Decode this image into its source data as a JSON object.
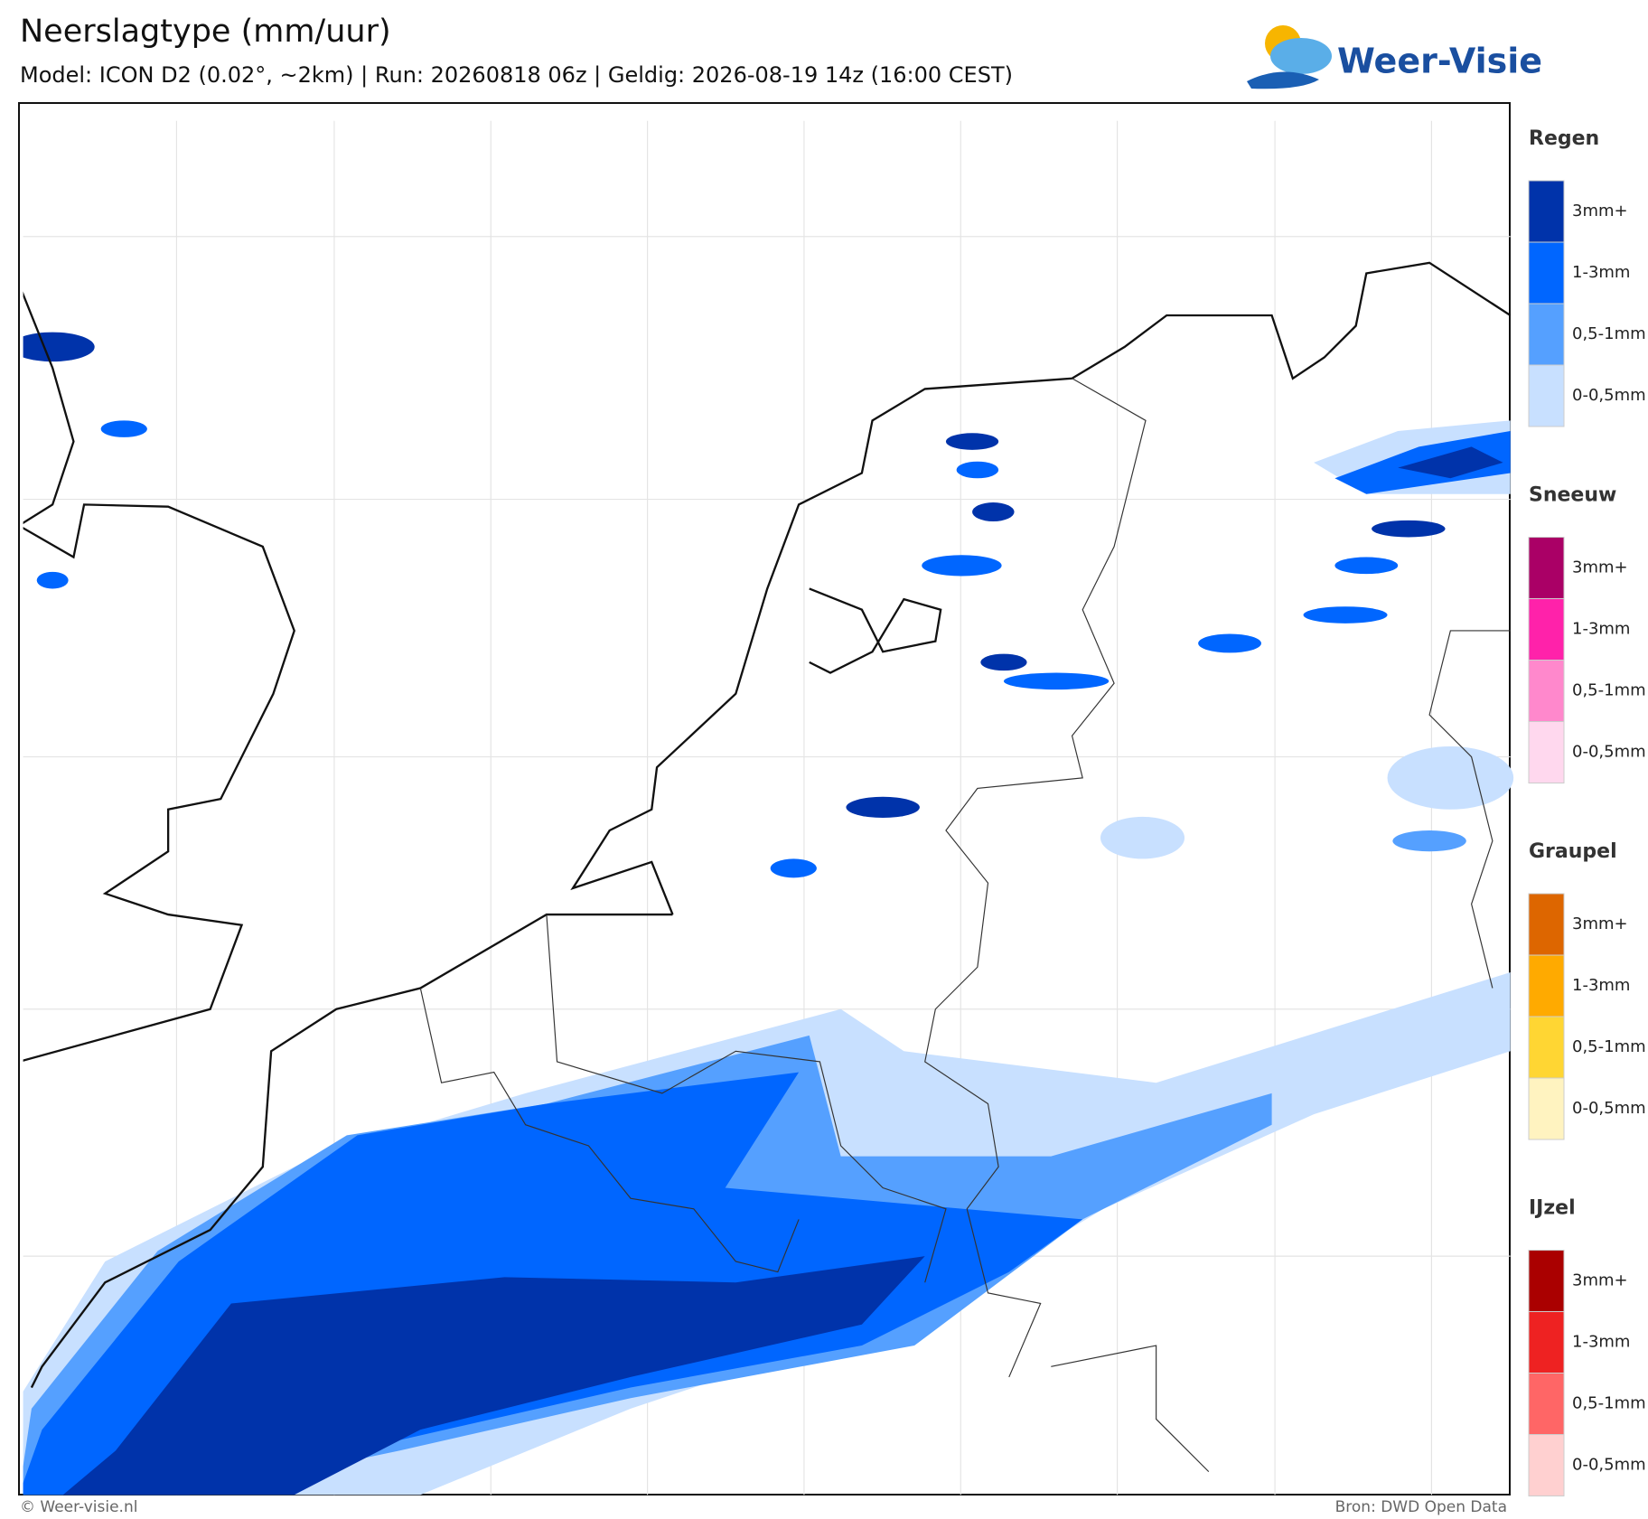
{
  "header": {
    "title": "Neerslagtype (mm/uur)",
    "subtitle": "Model: ICON D2 (0.02°, ~2km)  |  Run: 20260818 06z  |  Geldig: 2026-08-19 14z (16:00 CEST)"
  },
  "logo": {
    "text": "Weer-Visie"
  },
  "legend": {
    "groups": [
      {
        "title": "Regen",
        "items": [
          {
            "label": "3mm+",
            "color": "#0033aa"
          },
          {
            "label": "1-3mm",
            "color": "#0066ff"
          },
          {
            "label": "0,5-1mm",
            "color": "#55a0ff"
          },
          {
            "label": "0-0,5mm",
            "color": "#c8e0ff"
          }
        ]
      },
      {
        "title": "Sneeuw",
        "items": [
          {
            "label": "3mm+",
            "color": "#aa0066"
          },
          {
            "label": "1-3mm",
            "color": "#ff22aa"
          },
          {
            "label": "0,5-1mm",
            "color": "#ff88cc"
          },
          {
            "label": "0-0,5mm",
            "color": "#ffd8ee"
          }
        ]
      },
      {
        "title": "Graupel",
        "items": [
          {
            "label": "3mm+",
            "color": "#dd6600"
          },
          {
            "label": "1-3mm",
            "color": "#ffaa00"
          },
          {
            "label": "0,5-1mm",
            "color": "#ffd633"
          },
          {
            "label": "0-0,5mm",
            "color": "#fff3c0"
          }
        ]
      },
      {
        "title": "IJzel",
        "items": [
          {
            "label": "3mm+",
            "color": "#aa0000"
          },
          {
            "label": "1-3mm",
            "color": "#ee2222"
          },
          {
            "label": "0,5-1mm",
            "color": "#ff6666"
          },
          {
            "label": "0-0,5mm",
            "color": "#ffd0d0"
          }
        ]
      }
    ]
  },
  "footer": {
    "left": "© Weer-visie.nl",
    "right": "Bron: DWD Open Data"
  }
}
